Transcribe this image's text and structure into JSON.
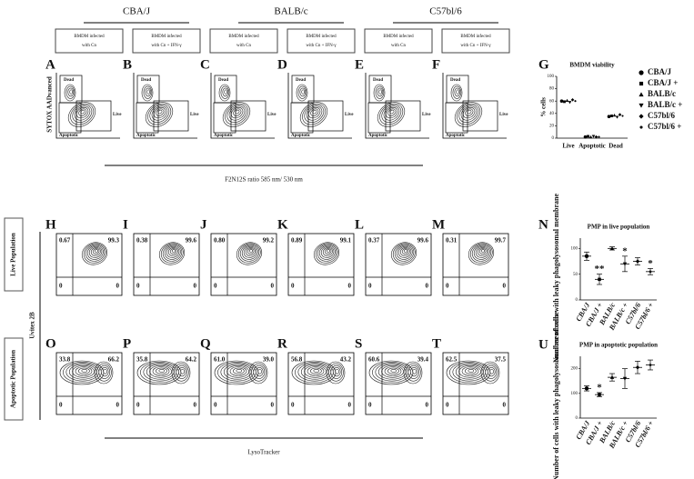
{
  "header": {
    "strains": [
      "CBA/J",
      "BALB/c",
      "C57bl/6"
    ],
    "conditions": [
      [
        "BMDM infected",
        "with Cn"
      ],
      [
        "BMDM infected",
        "with Cn + IFN-γ"
      ],
      [
        "BMDM infected",
        "with Cn"
      ],
      [
        "BMDM infected",
        "with Cn + IFN-γ"
      ],
      [
        "BMDM infected",
        "with Cn"
      ],
      [
        "BMDM infected",
        "with Cn + IFN-γ"
      ]
    ]
  },
  "viability_panels": {
    "letters": [
      "A",
      "B",
      "C",
      "D",
      "E",
      "F"
    ],
    "y_label": "SYTOX AADvanced",
    "gates": {
      "dead": "Dead",
      "live": "Live",
      "apoptotic": "Apoptotic"
    },
    "x_label": "F2N12S ratio 585 nm/ 530 nm"
  },
  "pmp_panels": {
    "live_letters": [
      "H",
      "I",
      "J",
      "K",
      "L",
      "M"
    ],
    "apoptotic_letters": [
      "O",
      "P",
      "Q",
      "R",
      "S",
      "T"
    ],
    "live_quadrants": [
      [
        "0.67",
        "99.3",
        "0",
        "0"
      ],
      [
        "0.38",
        "99.6",
        "0",
        "0"
      ],
      [
        "0.80",
        "99.2",
        "0",
        "0"
      ],
      [
        "0.89",
        "99.1",
        "0",
        "0"
      ],
      [
        "0.37",
        "99.6",
        "0",
        "0"
      ],
      [
        "0.31",
        "99.7",
        "0",
        "0"
      ]
    ],
    "apoptotic_quadrants": [
      [
        "33.8",
        "66.2",
        "0",
        "0"
      ],
      [
        "35.8",
        "64.2",
        "0",
        "0"
      ],
      [
        "61.0",
        "39.0",
        "0",
        "0"
      ],
      [
        "56.8",
        "43.2",
        "0",
        "0"
      ],
      [
        "60.6",
        "39.4",
        "0",
        "0"
      ],
      [
        "62.5",
        "37.5",
        "0",
        "0"
      ]
    ],
    "row_labels": [
      "Live Population",
      "Apoptotic Population"
    ],
    "y_label": "Uvitex 2B",
    "x_label": "LysoTracker"
  },
  "chart_data": [
    {
      "type": "grouped-dot",
      "letter": "G",
      "title": "BMDM viability",
      "y_label": "% cells",
      "categories": [
        "Live",
        "Apoptotic",
        "Dead"
      ],
      "ylim": [
        0,
        100
      ],
      "yticks": [
        0,
        20,
        40,
        60,
        80,
        100
      ],
      "series": [
        {
          "name": "CBA/J",
          "marker": "circle",
          "color": "#000000",
          "values": [
            60,
            2,
            35
          ]
        },
        {
          "name": "CBA/J +",
          "marker": "square",
          "color": "#000000",
          "values": [
            59,
            3,
            36
          ]
        },
        {
          "name": "BALB/c",
          "marker": "triangle-up",
          "color": "#000000",
          "values": [
            61,
            2,
            37
          ]
        },
        {
          "name": "BALB/c +",
          "marker": "triangle-down",
          "color": "#000000",
          "values": [
            58,
            3,
            34
          ]
        },
        {
          "name": "C57bl/6",
          "marker": "diamond",
          "color": "#000000",
          "values": [
            62,
            2,
            38
          ]
        },
        {
          "name": "C57bl/6 +",
          "marker": "dot",
          "color": "#000000",
          "values": [
            60,
            2,
            36
          ]
        }
      ]
    },
    {
      "type": "dot",
      "letter": "N",
      "title": "PMP in live population",
      "y_label": "Number of cells with leaky phagolysosomal membrane",
      "categories": [
        "CBA/J",
        "CBA/J +",
        "BALB/c",
        "BALB/c +",
        "C57bl/6",
        "C57bl/6 +"
      ],
      "markers": [
        "circle",
        "square",
        "triangle-up",
        "triangle-down",
        "diamond",
        "dot"
      ],
      "values": [
        85,
        40,
        100,
        70,
        75,
        55
      ],
      "errors": [
        8,
        10,
        3,
        15,
        7,
        6
      ],
      "significance": [
        null,
        "**",
        null,
        "*",
        null,
        "*"
      ],
      "ylim": [
        0,
        120
      ],
      "yticks": [
        0,
        50,
        100
      ]
    },
    {
      "type": "dot",
      "letter": "U",
      "title": "PMP in apoptotic population",
      "y_label": "Number of cells with leaky phagolysosomal membrane",
      "categories": [
        "CBA/J",
        "CBA/J +",
        "BALB/c",
        "BALB/c +",
        "C57bl/6",
        "C57bl/6 +"
      ],
      "markers": [
        "circle",
        "square",
        "triangle-up",
        "triangle-down",
        "diamond",
        "dot"
      ],
      "values": [
        120,
        95,
        165,
        160,
        205,
        215
      ],
      "errors": [
        10,
        8,
        15,
        40,
        25,
        20
      ],
      "significance": [
        null,
        "*",
        null,
        null,
        null,
        null
      ],
      "ylim": [
        0,
        250
      ],
      "yticks": [
        0,
        100,
        200
      ]
    }
  ]
}
